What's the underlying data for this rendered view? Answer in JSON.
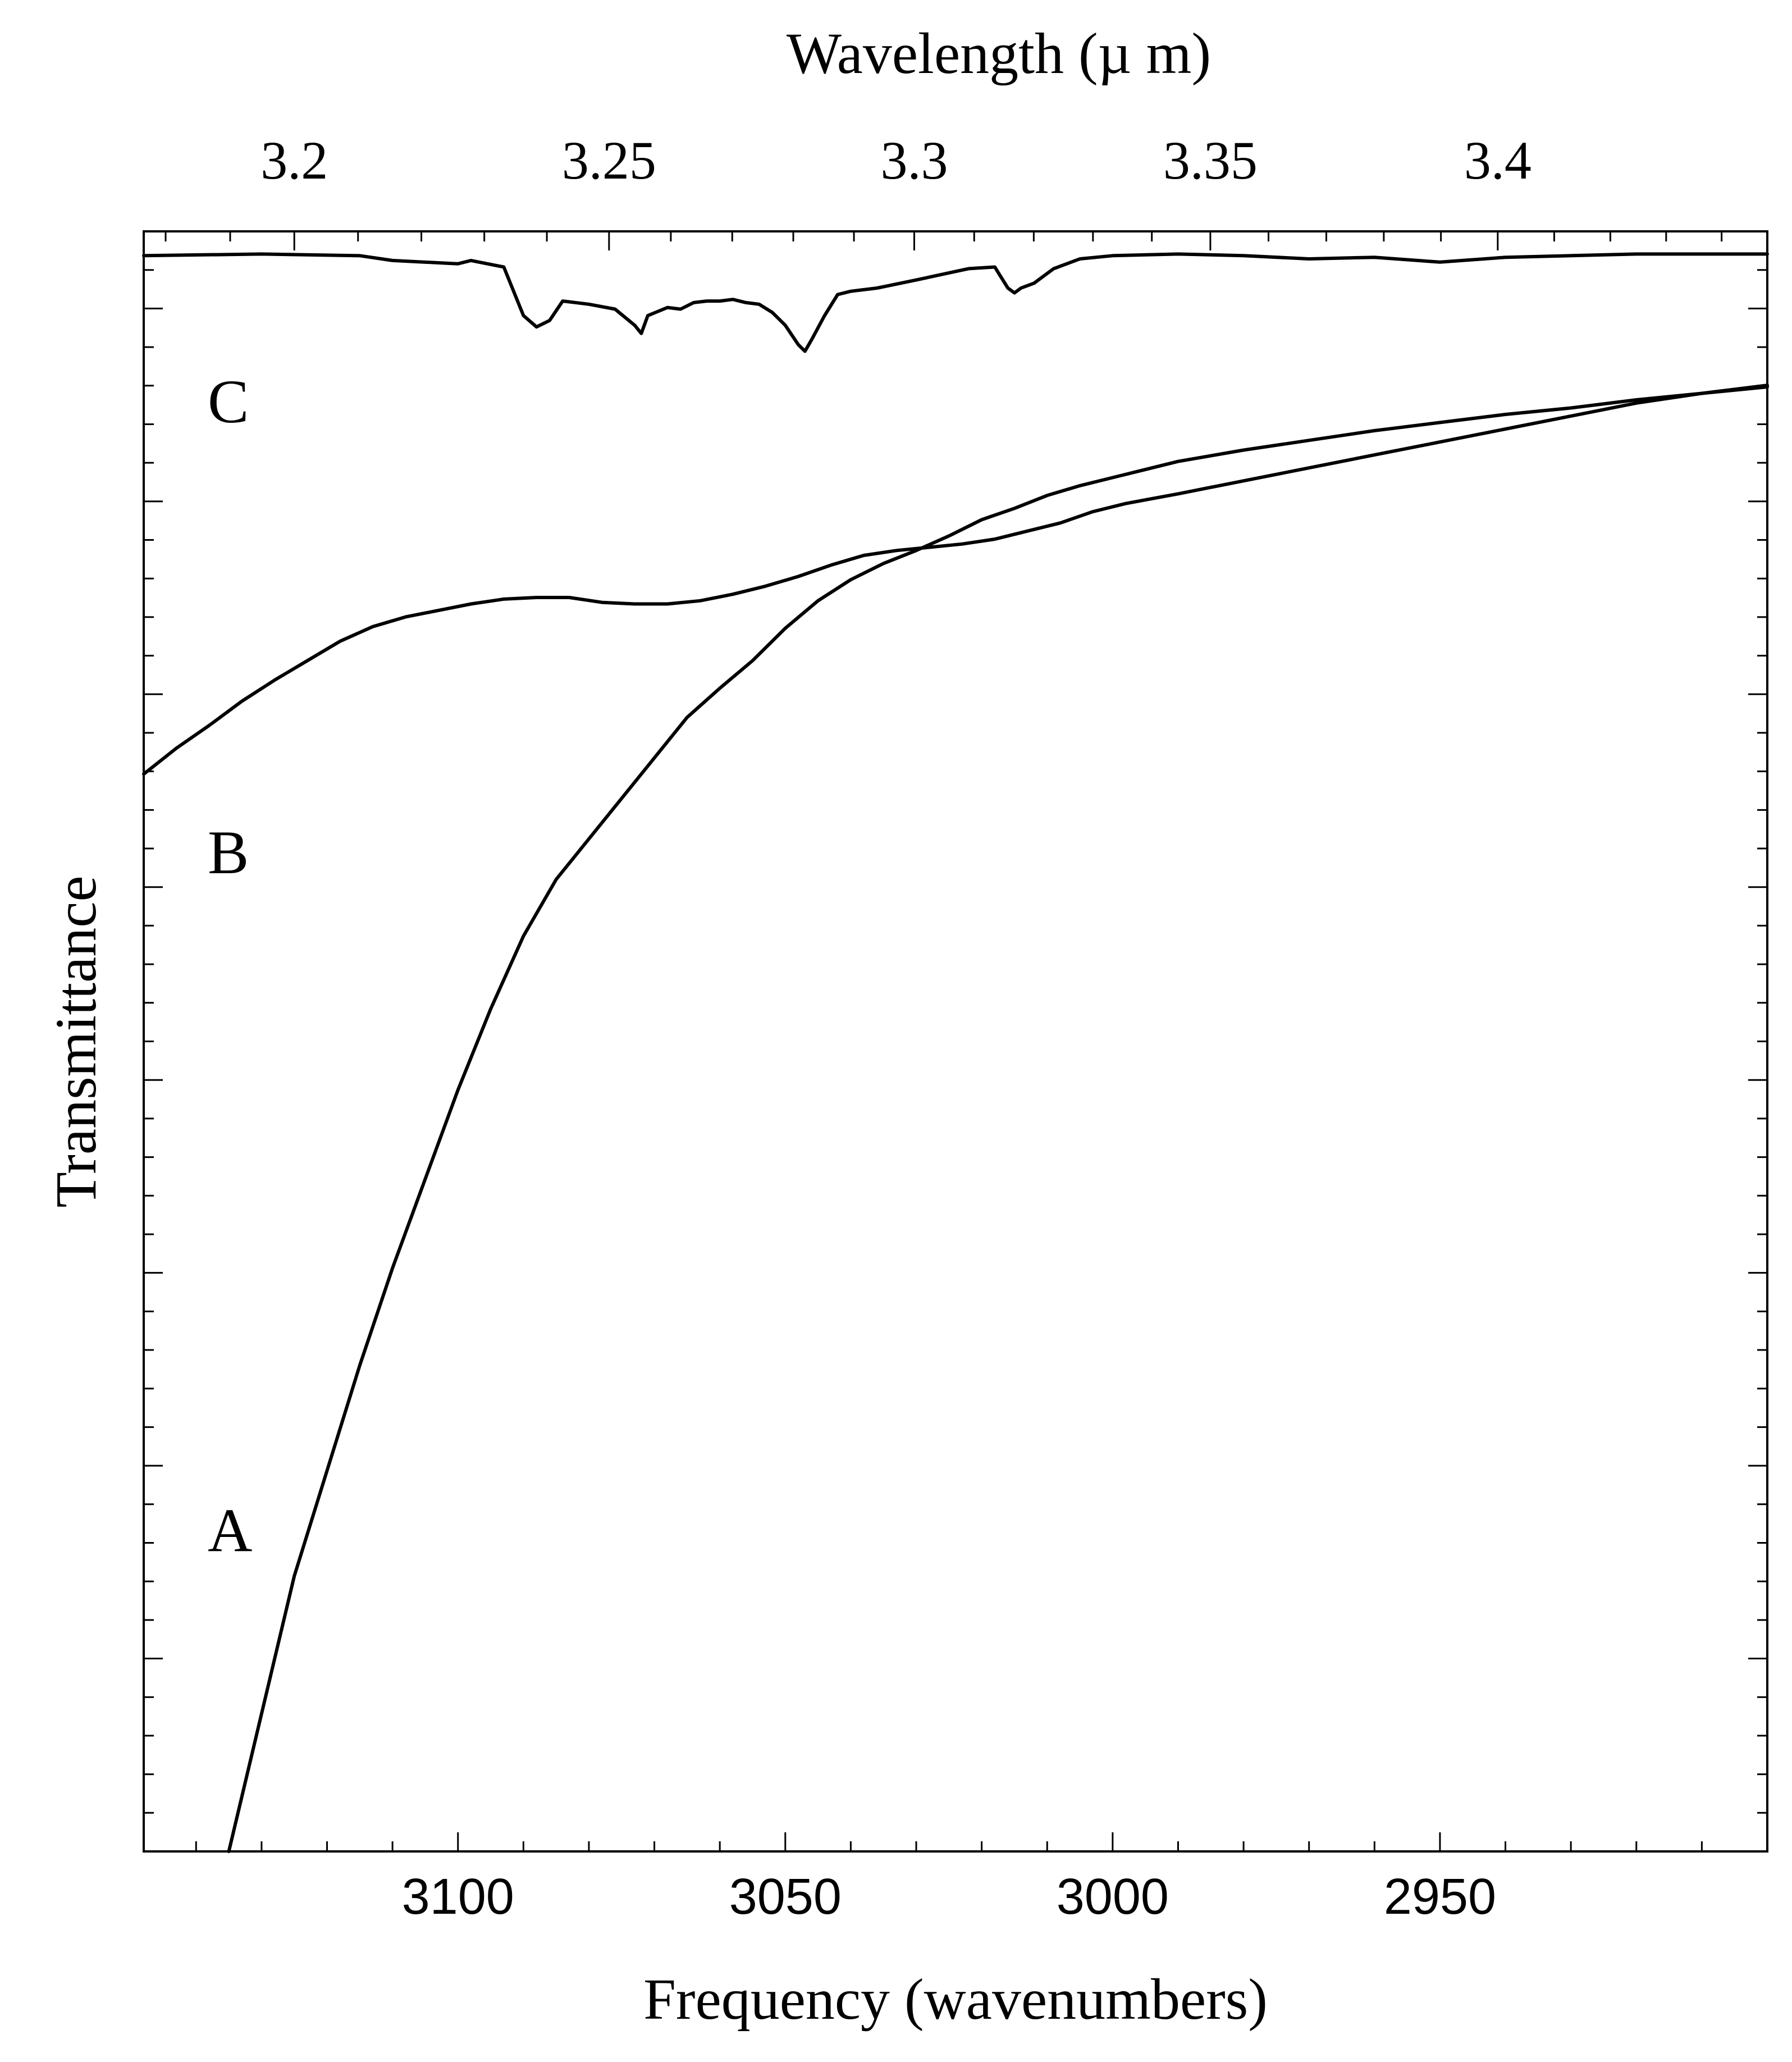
{
  "chart_data": {
    "type": "line",
    "xlabel": "Frequency (wavenumbers)",
    "x2label": "Wavelength (µ m)",
    "ylabel": "Transmittance",
    "xlim": [
      3148,
      2900
    ],
    "ylim": [
      0,
      1
    ],
    "xticks": [
      "3100",
      "3050",
      "3000",
      "2950"
    ],
    "xtick_values": [
      3100,
      3050,
      3000,
      2950
    ],
    "x2ticks": [
      "3.2",
      "3.25",
      "3.3",
      "3.35",
      "3.4"
    ],
    "x2tick_values": [
      3.2,
      3.25,
      3.3,
      3.35,
      3.4
    ],
    "grid": false,
    "series": [
      {
        "name": "A",
        "x": [
          3135,
          3130,
          3125,
          3120,
          3115,
          3110,
          3105,
          3100,
          3095,
          3090,
          3085,
          3080,
          3075,
          3070,
          3065,
          3060,
          3055,
          3050,
          3045,
          3040,
          3035,
          3030,
          3025,
          3020,
          3015,
          3010,
          3005,
          3000,
          2990,
          2980,
          2970,
          2960,
          2950,
          2940,
          2930,
          2920,
          2910,
          2900
        ],
        "values": [
          0.0,
          0.085,
          0.17,
          0.235,
          0.3,
          0.36,
          0.415,
          0.47,
          0.52,
          0.565,
          0.6,
          0.625,
          0.65,
          0.675,
          0.7,
          0.718,
          0.735,
          0.755,
          0.772,
          0.785,
          0.795,
          0.803,
          0.812,
          0.822,
          0.829,
          0.837,
          0.843,
          0.848,
          0.858,
          0.865,
          0.871,
          0.877,
          0.882,
          0.887,
          0.891,
          0.896,
          0.9,
          0.904
        ]
      },
      {
        "name": "B",
        "x": [
          3148,
          3143,
          3138,
          3133,
          3128,
          3123,
          3118,
          3113,
          3108,
          3103,
          3098,
          3093,
          3088,
          3083,
          3078,
          3073,
          3068,
          3063,
          3058,
          3053,
          3048,
          3043,
          3038,
          3033,
          3028,
          3023,
          3018,
          3013,
          3008,
          3003,
          2998,
          2990,
          2980,
          2970,
          2960,
          2950,
          2940,
          2930,
          2920,
          2910,
          2900
        ],
        "values": [
          0.665,
          0.681,
          0.695,
          0.71,
          0.723,
          0.735,
          0.747,
          0.756,
          0.762,
          0.766,
          0.77,
          0.773,
          0.774,
          0.774,
          0.771,
          0.77,
          0.77,
          0.772,
          0.776,
          0.781,
          0.787,
          0.794,
          0.8,
          0.803,
          0.805,
          0.807,
          0.81,
          0.815,
          0.82,
          0.827,
          0.832,
          0.838,
          0.846,
          0.854,
          0.862,
          0.87,
          0.878,
          0.886,
          0.894,
          0.9,
          0.905
        ]
      },
      {
        "name": "C",
        "x": [
          3148,
          3130,
          3115,
          3110,
          3100,
          3098,
          3093,
          3090,
          3088,
          3086,
          3084,
          3080,
          3076,
          3073,
          3072,
          3071,
          3068,
          3066,
          3064,
          3062,
          3060,
          3058,
          3056,
          3054,
          3052,
          3050,
          3048,
          3047,
          3046,
          3044,
          3042,
          3040,
          3036,
          3030,
          3022,
          3018,
          3016,
          3015,
          3014,
          3012,
          3009,
          3005,
          3000,
          2990,
          2980,
          2970,
          2960,
          2950,
          2940,
          2930,
          2920,
          2910,
          2900
        ],
        "values": [
          0.985,
          0.986,
          0.985,
          0.982,
          0.98,
          0.982,
          0.978,
          0.948,
          0.941,
          0.945,
          0.957,
          0.955,
          0.952,
          0.942,
          0.937,
          0.948,
          0.953,
          0.952,
          0.956,
          0.957,
          0.957,
          0.958,
          0.956,
          0.955,
          0.95,
          0.942,
          0.93,
          0.926,
          0.933,
          0.948,
          0.961,
          0.963,
          0.965,
          0.97,
          0.977,
          0.978,
          0.965,
          0.962,
          0.965,
          0.968,
          0.977,
          0.983,
          0.985,
          0.986,
          0.985,
          0.983,
          0.984,
          0.981,
          0.984,
          0.985,
          0.986,
          0.986,
          0.986
        ]
      }
    ]
  }
}
